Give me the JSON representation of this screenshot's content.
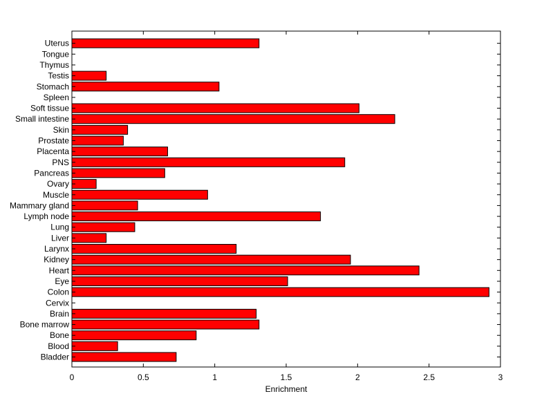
{
  "chart_data": {
    "type": "bar",
    "orientation": "horizontal",
    "title": "",
    "xlabel": "Enrichment",
    "ylabel": "",
    "xlim": [
      0,
      3
    ],
    "xticks": [
      0,
      0.5,
      1,
      1.5,
      2,
      2.5,
      3
    ],
    "xtick_labels": [
      "0",
      "0.5",
      "1",
      "1.5",
      "2",
      "2.5",
      "3"
    ],
    "grid": false,
    "bar_color": "#ff0000",
    "edge_color": "#000000",
    "categories": [
      "Bladder",
      "Blood",
      "Bone",
      "Bone marrow",
      "Brain",
      "Cervix",
      "Colon",
      "Eye",
      "Heart",
      "Kidney",
      "Larynx",
      "Liver",
      "Lung",
      "Lymph node",
      "Mammary gland",
      "Muscle",
      "Ovary",
      "Pancreas",
      "PNS",
      "Placenta",
      "Prostate",
      "Skin",
      "Small intestine",
      "Soft tissue",
      "Spleen",
      "Stomach",
      "Testis",
      "Thymus",
      "Tongue",
      "Uterus"
    ],
    "values": [
      0.73,
      0.32,
      0.87,
      1.31,
      1.29,
      0.0,
      2.92,
      1.51,
      2.43,
      1.95,
      1.15,
      0.24,
      0.44,
      1.74,
      0.46,
      0.95,
      0.17,
      0.65,
      1.91,
      0.67,
      0.36,
      0.39,
      2.26,
      2.01,
      0.0,
      1.03,
      0.24,
      0.0,
      0.0,
      1.31
    ]
  }
}
